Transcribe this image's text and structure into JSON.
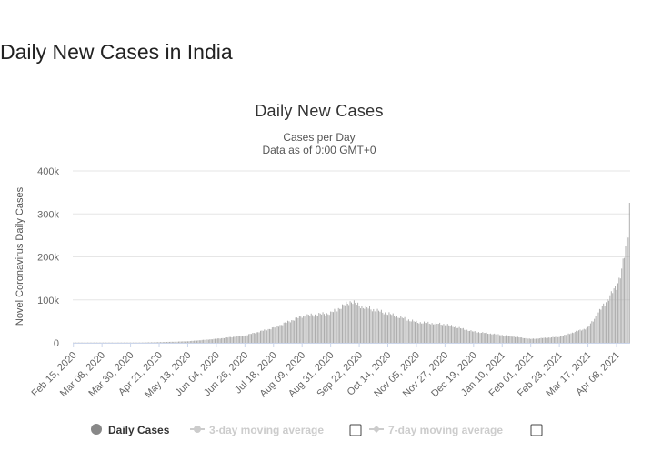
{
  "page": {
    "heading": "Daily New Cases in India"
  },
  "chart_data": {
    "type": "bar",
    "title": "Daily New Cases",
    "subtitle_lines": [
      "Cases per Day",
      "Data as of 0:00 GMT+0"
    ],
    "ylabel": "Novel Coronavirus Daily Cases",
    "xlabel": "",
    "ylim": [
      0,
      400000
    ],
    "yticks": [
      0,
      100000,
      200000,
      300000,
      400000
    ],
    "ytick_labels": [
      "0",
      "100k",
      "200k",
      "300k",
      "400k"
    ],
    "x_start": "2020-02-15",
    "x_end": "2021-04-18",
    "x_tick_labels": [
      "Feb 15, 2020",
      "Mar 08, 2020",
      "Mar 30, 2020",
      "Apr 21, 2020",
      "May 13, 2020",
      "Jun 04, 2020",
      "Jun 26, 2020",
      "Jul 18, 2020",
      "Aug 09, 2020",
      "Aug 31, 2020",
      "Sep 22, 2020",
      "Oct 14, 2020",
      "Nov 05, 2020",
      "Nov 27, 2020",
      "Dec 19, 2020",
      "Jan 10, 2021",
      "Feb 01, 2021",
      "Feb 23, 2021",
      "Mar 17, 2021",
      "Apr 08, 2021"
    ],
    "series": [
      {
        "name": "Daily Cases",
        "color": "#a8a8a8",
        "values_by_date_anchors": [
          [
            "2020-02-15",
            0
          ],
          [
            "2020-03-08",
            10
          ],
          [
            "2020-03-30",
            200
          ],
          [
            "2020-04-21",
            1500
          ],
          [
            "2020-05-13",
            3600
          ],
          [
            "2020-06-04",
            9300
          ],
          [
            "2020-06-26",
            17000
          ],
          [
            "2020-07-18",
            35000
          ],
          [
            "2020-08-09",
            62000
          ],
          [
            "2020-08-31",
            69000
          ],
          [
            "2020-09-16",
            97000
          ],
          [
            "2020-09-22",
            86000
          ],
          [
            "2020-10-14",
            68000
          ],
          [
            "2020-11-05",
            48000
          ],
          [
            "2020-11-27",
            43000
          ],
          [
            "2020-12-19",
            26000
          ],
          [
            "2021-01-10",
            18000
          ],
          [
            "2021-02-01",
            9000
          ],
          [
            "2021-02-23",
            14000
          ],
          [
            "2021-03-17",
            35000
          ],
          [
            "2021-04-08",
            131000
          ],
          [
            "2021-04-12",
            170000
          ],
          [
            "2021-04-15",
            217000
          ],
          [
            "2021-04-17",
            261000
          ],
          [
            "2021-04-18",
            330000
          ]
        ]
      }
    ],
    "legend": [
      {
        "label": "Daily Cases",
        "active": true
      },
      {
        "label": "3-day moving average",
        "active": false
      },
      {
        "label": "7-day moving average",
        "active": false
      }
    ],
    "legend_position": "bottom",
    "grid": true
  }
}
